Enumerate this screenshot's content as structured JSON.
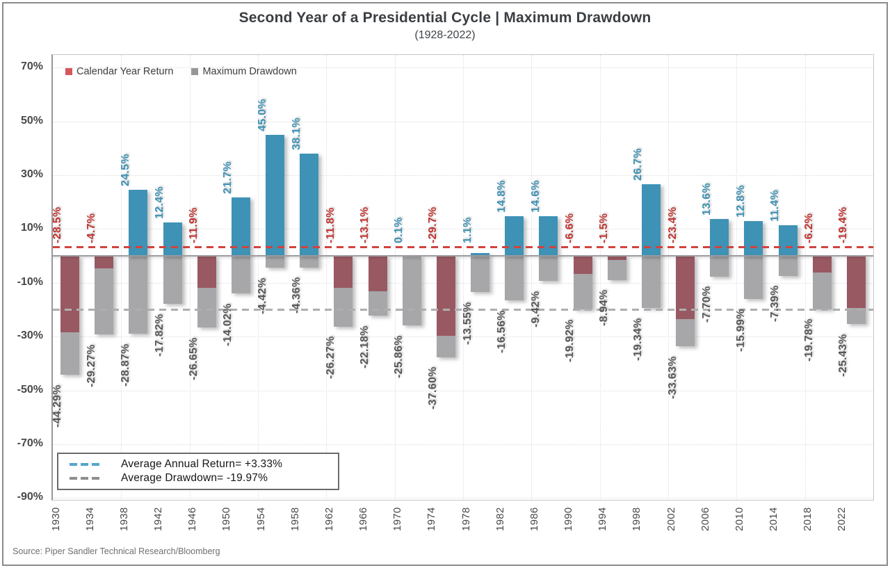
{
  "figure": {
    "title": "Second Year of a Presidential Cycle | Maximum Drawdown",
    "subtitle": "(1928-2022)",
    "source": "Source: Piper Sandler Technical Research/Bloomberg"
  },
  "legend": {
    "return_label": "Calendar Year Return",
    "drawdown_label": "Maximum Drawdown",
    "return_swatch_color": "#d4575c",
    "drawdown_swatch_color": "#97979b"
  },
  "average_box": {
    "return_line_label": "Average Annual Return= +3.33%",
    "drawdown_line_label": "Average Drawdown= -19.97%",
    "return_dash_color": "#53a5cb",
    "drawdown_dash_color": "#8e8e92"
  },
  "chart_data": {
    "type": "bar",
    "title": "Second Year of a Presidential Cycle | Maximum Drawdown",
    "subtitle": "(1928-2022)",
    "categories": [
      "1930",
      "1934",
      "1938",
      "1942",
      "1946",
      "1950",
      "1954",
      "1958",
      "1962",
      "1966",
      "1970",
      "1974",
      "1978",
      "1982",
      "1986",
      "1990",
      "1994",
      "1998",
      "2002",
      "2006",
      "2010",
      "2014",
      "2018",
      "2022"
    ],
    "series": [
      {
        "name": "Calendar Year Return",
        "values": [
          -28.5,
          -4.7,
          24.5,
          12.4,
          -11.9,
          21.7,
          45.0,
          38.1,
          -11.8,
          -13.1,
          0.1,
          -29.7,
          1.1,
          14.8,
          14.6,
          -6.6,
          -1.5,
          26.7,
          -23.4,
          13.6,
          12.8,
          11.4,
          -6.2,
          -19.4
        ],
        "labels": [
          "-28.5%",
          "-4.7%",
          "24.5%",
          "12.4%",
          "-11.9%",
          "21.7%",
          "45.0%",
          "38.1%",
          "-11.8%",
          "-13.1%",
          "0.1%",
          "-29.7%",
          "1.1%",
          "14.8%",
          "14.6%",
          "-6.6%",
          "-1.5%",
          "26.7%",
          "-23.4%",
          "13.6%",
          "12.8%",
          "11.4%",
          "-6.2%",
          "-19.4%"
        ],
        "positive_bar_color": "#3e92b5",
        "negative_bar_color": "#995962",
        "positive_label_color": "#3e92b5",
        "negative_label_color": "#c23431"
      },
      {
        "name": "Maximum Drawdown",
        "values": [
          -44.29,
          -29.27,
          -28.87,
          -17.82,
          -26.65,
          -14.02,
          -4.42,
          -4.36,
          -26.27,
          -22.18,
          -25.86,
          -37.6,
          -13.55,
          -16.56,
          -9.42,
          -19.92,
          -8.94,
          -19.34,
          -33.63,
          -7.7,
          -15.99,
          -7.39,
          -19.78,
          -25.43
        ],
        "labels": [
          "-44.29%",
          "-29.27%",
          "-28.87%",
          "-17.82%",
          "-26.65%",
          "-14.02%",
          "-4.42%",
          "-4.36%",
          "-26.27%",
          "-22.18%",
          "-25.86%",
          "-37.60%",
          "-13.55%",
          "-16.56%",
          "-9.42%",
          "-19.92%",
          "-8.94%",
          "-19.34%",
          "-33.63%",
          "-7.70%",
          "-15.99%",
          "-7.39%",
          "-19.78%",
          "-25.43%"
        ],
        "bar_color": "#a7a7aa",
        "label_color": "#58585a"
      }
    ],
    "reference_lines": [
      {
        "name": "Average Annual Return",
        "value": 3.33,
        "label": "Average Annual Return= +3.33%",
        "line_color": "#d0433e"
      },
      {
        "name": "Average Drawdown",
        "value": -19.97,
        "label": "Average Drawdown= -19.97%",
        "line_color": "#aeaeb0"
      }
    ],
    "yticks": [
      70,
      50,
      30,
      10,
      -10,
      -30,
      -50,
      -70,
      -90
    ],
    "ytick_labels": [
      "70%",
      "50%",
      "30%",
      "10%",
      "-10%",
      "-30%",
      "-50%",
      "-70%",
      "-90%"
    ],
    "ylim": [
      -90.7,
      74.7
    ],
    "grid": "dotted horizontal at 20% steps, dotted vertical between every 2 categories",
    "legend_position": "top-left inside plot",
    "zero_line_color": "#9c9ca0"
  }
}
